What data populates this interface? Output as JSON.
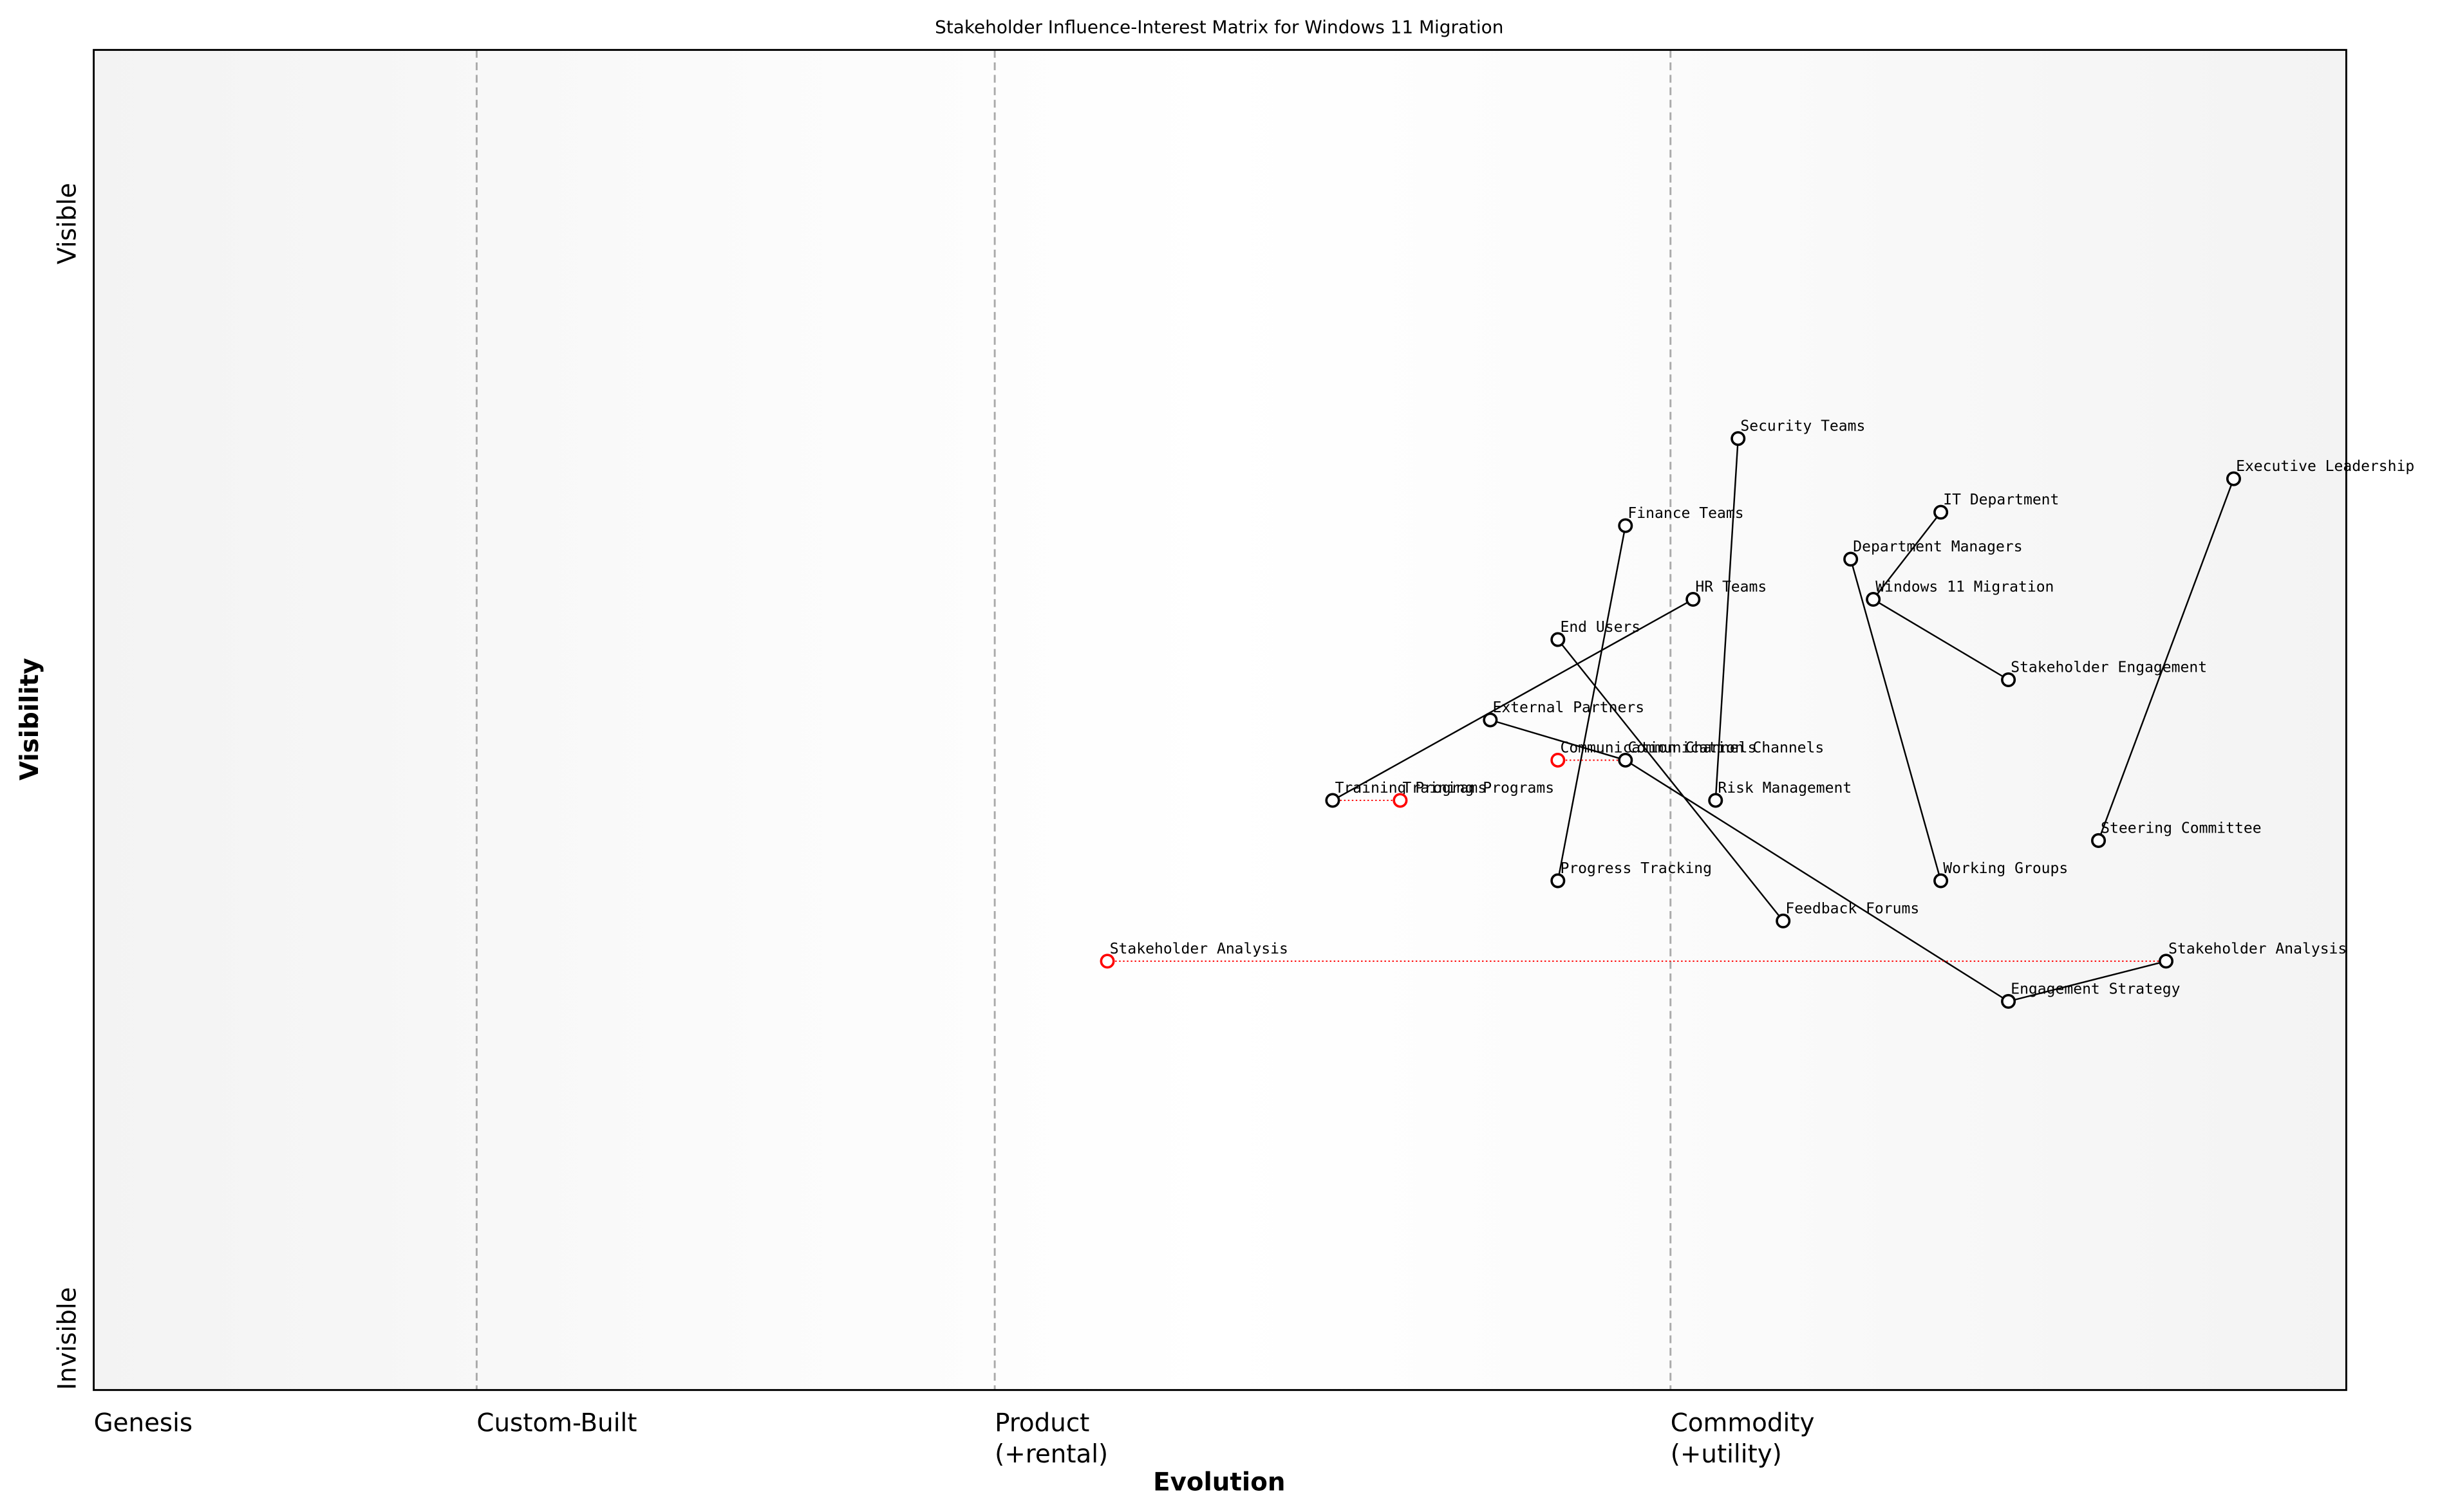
{
  "chart_data": {
    "type": "wardley",
    "title": "Stakeholder Influence-Interest Matrix for Windows 11 Migration",
    "xlabel": "Evolution",
    "ylabel": "Visibility",
    "xlim": [
      0,
      1
    ],
    "ylim": [
      0,
      1
    ],
    "xticks": [
      {
        "value": 0,
        "label": "Genesis"
      },
      {
        "value": 0.17,
        "label": "Custom-Built"
      },
      {
        "value": 0.4,
        "label": "Product\n(+rental)"
      },
      {
        "value": 0.7,
        "label": "Commodity\n(+utility)"
      }
    ],
    "yticks": [
      {
        "value": 0,
        "label": "Invisible"
      },
      {
        "value": 0.84,
        "label": "Visible"
      }
    ],
    "node_color": "#000000",
    "evolution_color": "#ff0000",
    "nodes": [
      {
        "name": "Security Teams",
        "x": 0.73,
        "y": 0.71
      },
      {
        "name": "Executive Leadership",
        "x": 0.95,
        "y": 0.68
      },
      {
        "name": "IT Department",
        "x": 0.82,
        "y": 0.655
      },
      {
        "name": "Finance Teams",
        "x": 0.68,
        "y": 0.645
      },
      {
        "name": "Department Managers",
        "x": 0.78,
        "y": 0.62
      },
      {
        "name": "HR Teams",
        "x": 0.71,
        "y": 0.59
      },
      {
        "name": "Windows 11 Migration",
        "x": 0.79,
        "y": 0.59
      },
      {
        "name": "End Users",
        "x": 0.65,
        "y": 0.56
      },
      {
        "name": "Stakeholder Engagement",
        "x": 0.85,
        "y": 0.53
      },
      {
        "name": "External Partners",
        "x": 0.62,
        "y": 0.5
      },
      {
        "name": "Communication Channels",
        "x": 0.68,
        "y": 0.47
      },
      {
        "name": "Training Programs",
        "x": 0.55,
        "y": 0.44
      },
      {
        "name": "Risk Management",
        "x": 0.72,
        "y": 0.44
      },
      {
        "name": "Steering Committee",
        "x": 0.89,
        "y": 0.41
      },
      {
        "name": "Working Groups",
        "x": 0.82,
        "y": 0.38
      },
      {
        "name": "Progress Tracking",
        "x": 0.65,
        "y": 0.38
      },
      {
        "name": "Feedback Forums",
        "x": 0.75,
        "y": 0.35
      },
      {
        "name": "Stakeholder Analysis",
        "x": 0.92,
        "y": 0.32
      },
      {
        "name": "Engagement Strategy",
        "x": 0.85,
        "y": 0.29
      }
    ],
    "evolutions": [
      {
        "name": "Communication Channels",
        "x": 0.65,
        "y": 0.47
      },
      {
        "name": "Training Programs",
        "x": 0.58,
        "y": 0.44
      },
      {
        "name": "Stakeholder Analysis",
        "x": 0.45,
        "y": 0.32
      }
    ],
    "links": [
      [
        "Executive Leadership",
        "Steering Committee"
      ],
      [
        "IT Department",
        "Windows 11 Migration"
      ],
      [
        "Windows 11 Migration",
        "Stakeholder Engagement"
      ],
      [
        "Department Managers",
        "Working Groups"
      ],
      [
        "Security Teams",
        "Risk Management"
      ],
      [
        "Finance Teams",
        "Progress Tracking"
      ],
      [
        "HR Teams",
        "Training Programs"
      ],
      [
        "End Users",
        "Feedback Forums"
      ],
      [
        "External Partners",
        "Communication Channels"
      ],
      [
        "Communication Channels",
        "Engagement Strategy"
      ],
      [
        "Stakeholder Analysis",
        "Engagement Strategy"
      ]
    ]
  }
}
